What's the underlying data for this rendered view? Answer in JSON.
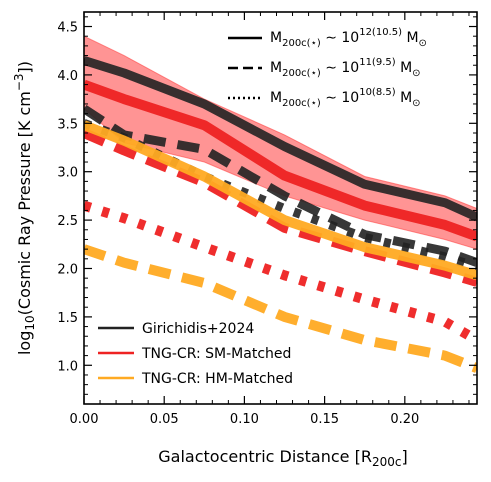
{
  "chart_data": {
    "type": "line",
    "xlabel": "Galactocentric Distance [R",
    "xlabel_sub": "200c",
    "xlabel_end": "]",
    "ylabel_prefix": "log",
    "ylabel_sub": "10",
    "ylabel_main": "(Cosmic Ray Pressure [K cm",
    "ylabel_sup": "−3",
    "ylabel_end": "])",
    "xlim": [
      0,
      0.245
    ],
    "ylim": [
      0.6,
      4.65
    ],
    "xticks": [
      0.0,
      0.05,
      0.1,
      0.15,
      0.2
    ],
    "xtick_labels": [
      "0.00",
      "0.05",
      "0.10",
      "0.15",
      "0.20"
    ],
    "yticks": [
      1.0,
      1.5,
      2.0,
      2.5,
      3.0,
      3.5,
      4.0,
      4.5
    ],
    "ytick_labels": [
      "1.0",
      "1.5",
      "2.0",
      "2.5",
      "3.0",
      "3.5",
      "4.0",
      "4.5"
    ],
    "colors": {
      "girichidis": "#222222",
      "sm_matched": "#ee2222",
      "hm_matched": "#ffaa22",
      "band": "#ff6666"
    },
    "band": {
      "x": [
        0.0,
        0.025,
        0.075,
        0.125,
        0.175,
        0.225,
        0.245
      ],
      "upper": [
        4.4,
        4.2,
        3.75,
        3.38,
        2.95,
        2.75,
        2.62
      ],
      "lower": [
        3.65,
        3.3,
        3.1,
        2.75,
        2.5,
        2.3,
        2.2
      ]
    },
    "series": [
      {
        "group": "girichidis",
        "style": "solid",
        "x": [
          0.0,
          0.025,
          0.075,
          0.125,
          0.175,
          0.225,
          0.245
        ],
        "y": [
          4.15,
          4.02,
          3.7,
          3.26,
          2.87,
          2.68,
          2.53
        ]
      },
      {
        "group": "girichidis",
        "style": "dashed",
        "x": [
          0.0,
          0.025,
          0.075,
          0.125,
          0.175,
          0.225,
          0.245
        ],
        "y": [
          3.65,
          3.38,
          3.23,
          2.75,
          2.35,
          2.18,
          2.06
        ]
      },
      {
        "group": "girichidis",
        "style": "dotted",
        "x": [
          0.0,
          0.025,
          0.075,
          0.125,
          0.175,
          0.225,
          0.245
        ],
        "y": [
          3.5,
          3.35,
          2.95,
          2.62,
          2.32,
          2.12,
          2.02
        ]
      },
      {
        "group": "sm_matched",
        "style": "solid",
        "x": [
          0.0,
          0.025,
          0.075,
          0.125,
          0.175,
          0.225,
          0.245
        ],
        "y": [
          3.9,
          3.75,
          3.48,
          2.96,
          2.65,
          2.45,
          2.33
        ]
      },
      {
        "group": "sm_matched",
        "style": "dashed",
        "x": [
          0.0,
          0.025,
          0.075,
          0.125,
          0.175,
          0.225,
          0.245
        ],
        "y": [
          3.4,
          3.22,
          2.89,
          2.42,
          2.18,
          1.96,
          1.86
        ]
      },
      {
        "group": "sm_matched",
        "style": "dotted",
        "x": [
          0.0,
          0.025,
          0.075,
          0.125,
          0.175,
          0.225,
          0.245
        ],
        "y": [
          2.65,
          2.52,
          2.22,
          1.93,
          1.68,
          1.45,
          1.26
        ]
      },
      {
        "group": "hm_matched",
        "style": "solid",
        "x": [
          0.0,
          0.025,
          0.075,
          0.125,
          0.175,
          0.225,
          0.245
        ],
        "y": [
          3.48,
          3.32,
          2.95,
          2.5,
          2.22,
          2.03,
          1.93
        ]
      },
      {
        "group": "hm_matched",
        "style": "dashed",
        "x": [
          0.0,
          0.025,
          0.075,
          0.125,
          0.175,
          0.225,
          0.245
        ],
        "y": [
          2.2,
          2.06,
          1.85,
          1.5,
          1.26,
          1.1,
          0.97
        ]
      }
    ],
    "legend": [
      {
        "label": "Girichidis+2024",
        "color_key": "girichidis"
      },
      {
        "label": "TNG-CR: SM-Matched",
        "color_key": "sm_matched"
      },
      {
        "label": "TNG-CR: HM-Matched",
        "color_key": "hm_matched"
      }
    ],
    "style_legend": [
      {
        "style": "solid",
        "m_text": "M",
        "m_sub": "200c(⋆)",
        "sim": "∼ 10",
        "exp": "12(10.5)",
        "unit": "M",
        "sun": "⊙"
      },
      {
        "style": "dashed",
        "m_text": "M",
        "m_sub": "200c(⋆)",
        "sim": "∼ 10",
        "exp": "11(9.5)",
        "unit": "M",
        "sun": "⊙"
      },
      {
        "style": "dotted",
        "m_text": "M",
        "m_sub": "200c(⋆)",
        "sim": "∼ 10",
        "exp": "10(8.5)",
        "unit": "M",
        "sun": "⊙"
      }
    ]
  }
}
